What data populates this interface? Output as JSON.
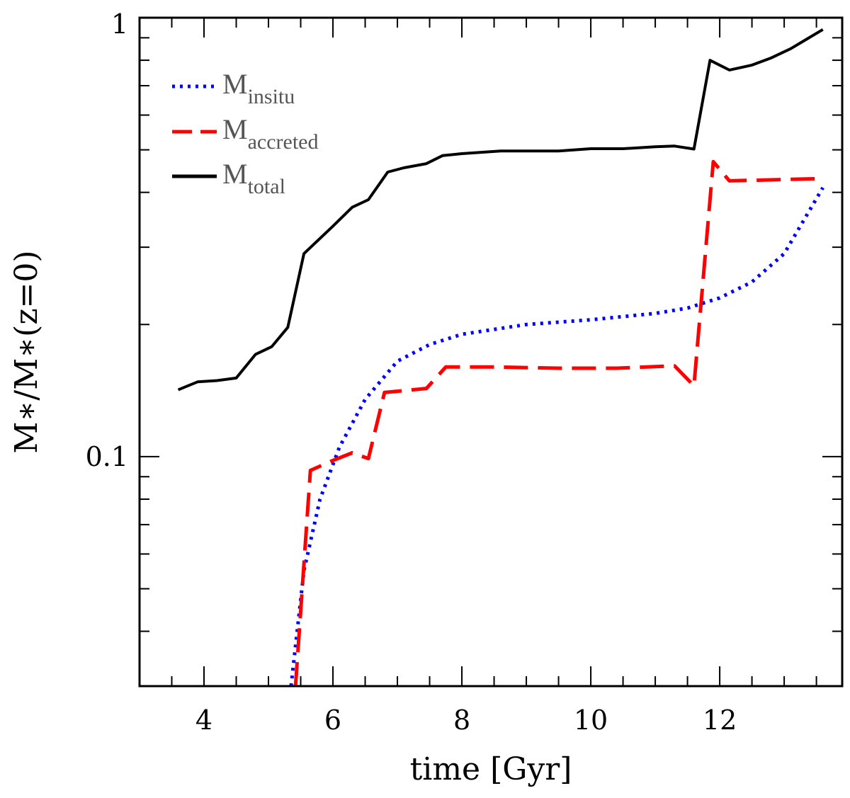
{
  "chart_data": {
    "type": "line",
    "title": "",
    "xlabel": "time [Gyr]",
    "ylabel": "M∗/M∗(z=0)",
    "ylabel_parts": {
      "num": "M∗",
      "den": "M∗",
      "suffix": "(z=0)"
    },
    "xlim": [
      3,
      13.9
    ],
    "ylim": [
      0.03,
      1
    ],
    "yscale": "log",
    "x_ticks": [
      4,
      6,
      8,
      10,
      12
    ],
    "x_tick_labels": [
      "4",
      "6",
      "8",
      "10",
      "12"
    ],
    "y_ticks": [
      0.1,
      1
    ],
    "y_tick_labels": [
      "0.1",
      "1"
    ],
    "legend_position": "top-left",
    "series": [
      {
        "name": "M_insitu",
        "label_main": "M",
        "label_sub": "insitu",
        "color": "#0000ff",
        "style": "dotted",
        "x": [
          5.35,
          5.55,
          5.8,
          6.1,
          6.5,
          7.0,
          7.5,
          8.0,
          9.0,
          10.0,
          11.0,
          11.5,
          12.0,
          12.5,
          13.0,
          13.6
        ],
        "y": [
          0.03,
          0.055,
          0.08,
          0.105,
          0.135,
          0.165,
          0.18,
          0.19,
          0.2,
          0.205,
          0.212,
          0.218,
          0.23,
          0.25,
          0.29,
          0.41
        ]
      },
      {
        "name": "M_accreted",
        "label_main": "M",
        "label_sub": "accreted",
        "color": "#ff0000",
        "style": "dashed",
        "x": [
          5.42,
          5.65,
          6.0,
          6.3,
          6.55,
          6.8,
          7.45,
          7.75,
          8.5,
          9.5,
          10.4,
          11.3,
          11.6,
          11.9,
          12.15,
          13.6
        ],
        "y": [
          0.03,
          0.093,
          0.098,
          0.102,
          0.099,
          0.14,
          0.143,
          0.16,
          0.16,
          0.159,
          0.159,
          0.161,
          0.145,
          0.47,
          0.425,
          0.43
        ]
      },
      {
        "name": "M_total",
        "label_main": "M",
        "label_sub": "total",
        "color": "#000000",
        "style": "solid",
        "x": [
          3.6,
          3.9,
          4.2,
          4.5,
          4.8,
          5.05,
          5.3,
          5.55,
          6.0,
          6.3,
          6.55,
          6.85,
          7.1,
          7.45,
          7.7,
          8.0,
          8.6,
          9.5,
          10.0,
          10.5,
          11.0,
          11.3,
          11.6,
          11.85,
          12.15,
          12.5,
          12.8,
          13.1,
          13.6
        ],
        "y": [
          0.142,
          0.148,
          0.149,
          0.151,
          0.171,
          0.178,
          0.197,
          0.29,
          0.335,
          0.37,
          0.385,
          0.445,
          0.455,
          0.465,
          0.485,
          0.49,
          0.497,
          0.497,
          0.503,
          0.503,
          0.508,
          0.51,
          0.502,
          0.8,
          0.76,
          0.78,
          0.81,
          0.85,
          0.94
        ]
      }
    ]
  }
}
